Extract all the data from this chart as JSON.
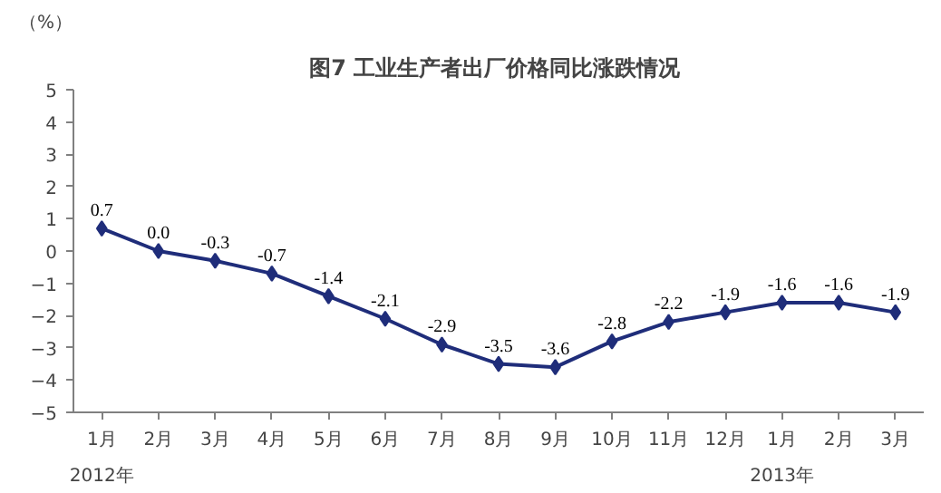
{
  "chart_data": {
    "type": "line",
    "title": "图7  工业生产者出厂价格同比涨跌情况",
    "ylabel": "（%）",
    "categories": [
      "1月",
      "2月",
      "3月",
      "4月",
      "5月",
      "6月",
      "7月",
      "8月",
      "9月",
      "10月",
      "11月",
      "12月",
      "1月",
      "2月",
      "3月"
    ],
    "series": [
      {
        "color": "#1f2d7a",
        "values": [
          0.7,
          0.0,
          -0.3,
          -0.7,
          -1.4,
          -2.1,
          -2.9,
          -3.5,
          -3.6,
          -2.8,
          -2.2,
          -1.9,
          -1.6,
          -1.6,
          -1.9
        ],
        "value_labels": [
          "0.7",
          "0.0",
          "-0.3",
          "-0.7",
          "-1.4",
          "-2.1",
          "-2.9",
          "-3.5",
          "-3.6",
          "-2.8",
          "-2.2",
          "-1.9",
          "-1.6",
          "-1.6",
          "-1.9"
        ]
      }
    ],
    "ylim": [
      -5,
      5
    ],
    "yticks": [
      -5,
      -4,
      -3,
      -2,
      -1,
      0,
      1,
      2,
      3,
      4,
      5
    ],
    "grid": false,
    "marker": "diamond",
    "line_style": "solid",
    "annotations": [
      "2012年",
      "2013年"
    ]
  }
}
